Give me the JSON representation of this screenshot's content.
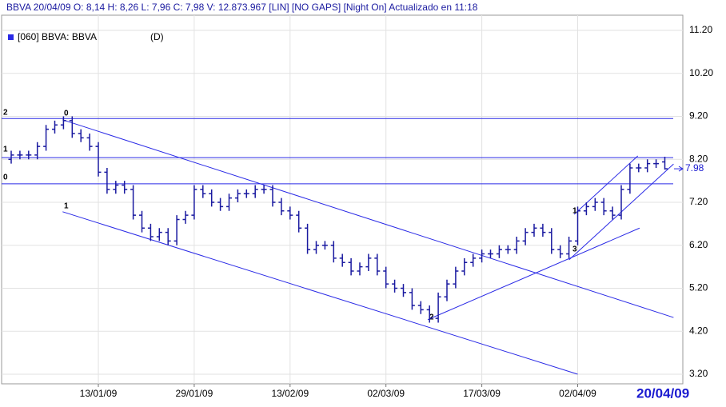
{
  "chart_data": {
    "type": "ohlc",
    "header": "BBVA   20/04/09   O: 8,14   H: 8,26   L: 7,96   C: 7,98   V: 12.873.967   [LIN] [NO GAPS] [Night On]   Actualizado en 11:18",
    "legend": "[060] BBVA: BBVA",
    "period": "(D)",
    "color": "#1a1aa0",
    "line_color": "#2a2ae6",
    "grid": true,
    "categories": [
      null,
      null,
      null,
      null,
      null,
      null,
      null,
      null,
      null,
      null,
      "13/01/09",
      null,
      null,
      null,
      null,
      null,
      null,
      null,
      null,
      null,
      null,
      "29/01/09",
      null,
      null,
      null,
      null,
      null,
      null,
      null,
      null,
      null,
      null,
      "13/02/09",
      null,
      null,
      null,
      null,
      null,
      null,
      null,
      null,
      null,
      null,
      "02/03/09",
      null,
      null,
      null,
      null,
      null,
      null,
      null,
      null,
      null,
      null,
      "17/03/09",
      null,
      null,
      null,
      null,
      null,
      null,
      null,
      null,
      null,
      null,
      "02/04/09",
      null,
      null,
      null,
      null,
      null,
      null,
      null,
      null,
      null,
      "20/04/09"
    ],
    "open": [
      8.2,
      8.3,
      8.3,
      8.3,
      8.5,
      8.9,
      9.0,
      9.1,
      8.8,
      8.7,
      8.5,
      7.9,
      7.5,
      7.6,
      7.5,
      6.9,
      6.6,
      6.4,
      6.5,
      6.3,
      6.8,
      6.9,
      7.5,
      7.4,
      7.2,
      7.1,
      7.3,
      7.4,
      7.4,
      7.5,
      7.5,
      7.2,
      7.0,
      6.9,
      6.6,
      6.1,
      6.2,
      6.2,
      5.9,
      5.8,
      5.6,
      5.7,
      5.9,
      5.6,
      5.3,
      5.2,
      5.1,
      4.8,
      4.7,
      4.5,
      5.0,
      5.3,
      5.6,
      5.8,
      5.9,
      6.0,
      6.0,
      6.1,
      6.1,
      6.3,
      6.5,
      6.6,
      6.5,
      6.1,
      6.0,
      6.3,
      7.0,
      7.1,
      7.2,
      7.0,
      6.9,
      7.5,
      8.0,
      8.0,
      8.1,
      8.14
    ],
    "high": [
      8.4,
      8.4,
      8.4,
      8.6,
      9.0,
      9.1,
      9.2,
      9.2,
      8.9,
      8.8,
      8.6,
      8.0,
      7.7,
      7.7,
      7.6,
      7.0,
      6.7,
      6.6,
      6.6,
      6.9,
      7.0,
      7.6,
      7.6,
      7.5,
      7.3,
      7.4,
      7.5,
      7.5,
      7.6,
      7.6,
      7.6,
      7.3,
      7.1,
      7.0,
      6.7,
      6.3,
      6.3,
      6.3,
      6.0,
      5.9,
      5.8,
      6.0,
      6.0,
      5.7,
      5.4,
      5.3,
      5.2,
      4.9,
      4.8,
      5.1,
      5.4,
      5.7,
      5.9,
      6.0,
      6.1,
      6.1,
      6.2,
      6.2,
      6.4,
      6.6,
      6.7,
      6.7,
      6.6,
      6.2,
      6.4,
      7.1,
      7.2,
      7.3,
      7.3,
      7.1,
      7.6,
      8.1,
      8.1,
      8.2,
      8.2,
      8.26
    ],
    "low": [
      8.1,
      8.2,
      8.2,
      8.2,
      8.4,
      8.8,
      8.9,
      8.7,
      8.6,
      8.4,
      7.8,
      7.4,
      7.4,
      7.4,
      6.8,
      6.5,
      6.3,
      6.3,
      6.2,
      6.2,
      6.7,
      6.8,
      7.3,
      7.1,
      7.0,
      7.0,
      7.2,
      7.3,
      7.3,
      7.4,
      7.1,
      6.9,
      6.8,
      6.5,
      6.0,
      6.0,
      6.1,
      5.8,
      5.7,
      5.5,
      5.5,
      5.6,
      5.5,
      5.2,
      5.1,
      5.0,
      4.7,
      4.6,
      4.4,
      4.4,
      4.9,
      5.2,
      5.5,
      5.7,
      5.8,
      5.9,
      5.9,
      6.0,
      6.0,
      6.2,
      6.4,
      6.4,
      6.0,
      5.9,
      5.9,
      6.2,
      6.9,
      7.0,
      6.9,
      6.8,
      6.8,
      7.4,
      7.9,
      7.9,
      8.0,
      7.96
    ],
    "close": [
      8.3,
      8.3,
      8.3,
      8.5,
      8.9,
      9.0,
      9.1,
      8.8,
      8.7,
      8.5,
      7.9,
      7.5,
      7.6,
      7.5,
      6.9,
      6.6,
      6.4,
      6.5,
      6.3,
      6.8,
      6.9,
      7.5,
      7.4,
      7.2,
      7.1,
      7.3,
      7.4,
      7.4,
      7.5,
      7.5,
      7.2,
      7.0,
      6.9,
      6.6,
      6.1,
      6.2,
      6.2,
      5.9,
      5.8,
      5.6,
      5.7,
      5.9,
      5.6,
      5.3,
      5.2,
      5.1,
      4.8,
      4.7,
      4.5,
      5.0,
      5.3,
      5.6,
      5.8,
      5.9,
      6.0,
      6.0,
      6.1,
      6.1,
      6.3,
      6.5,
      6.6,
      6.5,
      6.1,
      6.0,
      6.3,
      7.0,
      7.1,
      7.2,
      7.0,
      6.9,
      7.5,
      8.0,
      8.0,
      8.1,
      8.1,
      7.98
    ],
    "ylim": [
      3.2,
      11.2
    ],
    "yticks": [
      {
        "value": 3.2,
        "label": "3.20"
      },
      {
        "value": 4.2,
        "label": "4.20"
      },
      {
        "value": 5.2,
        "label": "5.20"
      },
      {
        "value": 6.2,
        "label": "6.20"
      },
      {
        "value": 7.2,
        "label": "7.20"
      },
      {
        "value": 8.2,
        "label": "8.20"
      },
      {
        "value": 9.2,
        "label": "9.20"
      },
      {
        "value": 10.2,
        "label": "10.20"
      },
      {
        "value": 11.2,
        "label": "11.20"
      }
    ],
    "hlines": [
      9.15,
      8.24,
      7.63
    ],
    "trendlines": [
      {
        "x": [
          5.9,
          76
        ],
        "y": [
          9.12,
          4.52
        ]
      },
      {
        "x": [
          5.9,
          65
        ],
        "y": [
          6.98,
          3.2
        ]
      },
      {
        "x": [
          47.8,
          72.1
        ],
        "y": [
          4.47,
          6.6
        ]
      },
      {
        "x": [
          64,
          76
        ],
        "y": [
          5.86,
          8.09
        ]
      },
      {
        "x": [
          64.6,
          71.9
        ],
        "y": [
          6.92,
          8.28
        ]
      }
    ],
    "annotations": [
      "2",
      "0",
      "1",
      "0",
      "1",
      "2",
      "3",
      "1"
    ]
  }
}
